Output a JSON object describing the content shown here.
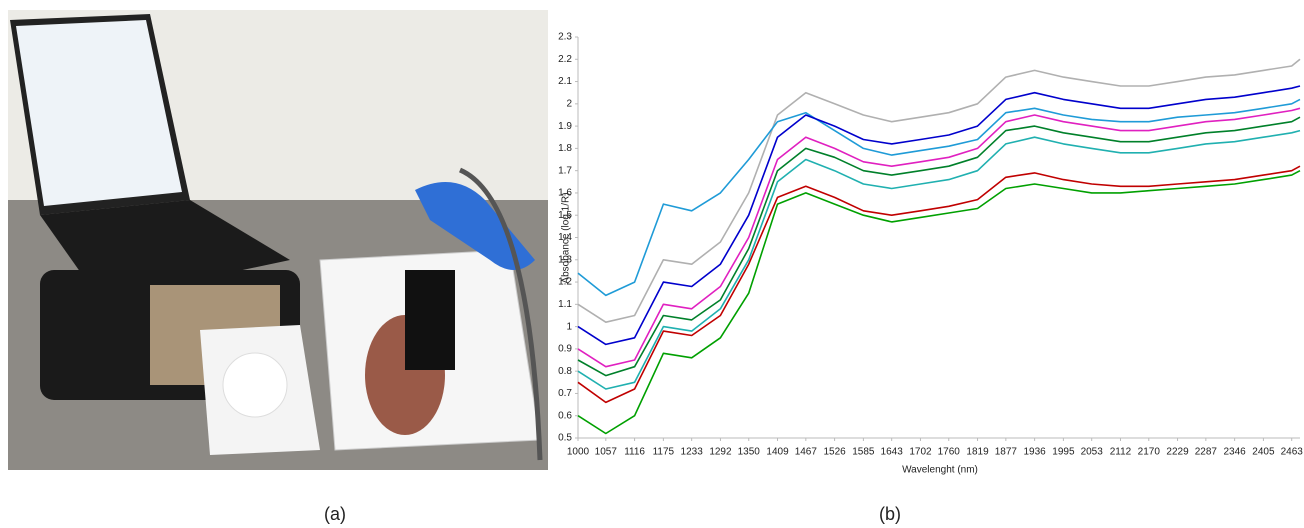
{
  "captions": [
    "(a)",
    "(b)"
  ],
  "chart_data": {
    "type": "line",
    "ylabel": "Absobance (log 1/R)",
    "xlabel": "Wavelenght (nm)",
    "xlim": [
      1000,
      2480
    ],
    "ylim": [
      0.5,
      2.3
    ],
    "xticks": [
      1000,
      1057,
      1116,
      1175,
      1233,
      1292,
      1350,
      1409,
      1467,
      1526,
      1585,
      1643,
      1702,
      1760,
      1819,
      1877,
      1936,
      1995,
      2053,
      2112,
      2170,
      2229,
      2287,
      2346,
      2405,
      2463
    ],
    "yticks": [
      0.5,
      0.6,
      0.7,
      0.8,
      0.9,
      1,
      1.1,
      1.2,
      1.3,
      1.4,
      1.5,
      1.6,
      1.7,
      1.8,
      1.9,
      2,
      2.1,
      2.2,
      2.3
    ],
    "x": [
      1000,
      1057,
      1116,
      1175,
      1233,
      1292,
      1350,
      1409,
      1467,
      1526,
      1585,
      1643,
      1702,
      1760,
      1819,
      1877,
      1936,
      1995,
      2053,
      2112,
      2170,
      2229,
      2287,
      2346,
      2405,
      2463,
      2480
    ],
    "series": [
      {
        "color": "#b0b0b0",
        "values": [
          1.1,
          1.02,
          1.05,
          1.3,
          1.28,
          1.38,
          1.6,
          1.95,
          2.05,
          2.0,
          1.95,
          1.92,
          1.94,
          1.96,
          2.0,
          2.12,
          2.15,
          2.12,
          2.1,
          2.08,
          2.08,
          2.1,
          2.12,
          2.13,
          2.15,
          2.17,
          2.2
        ]
      },
      {
        "color": "#1f9bd7",
        "values": [
          1.24,
          1.14,
          1.2,
          1.55,
          1.52,
          1.6,
          1.75,
          1.92,
          1.96,
          1.88,
          1.8,
          1.77,
          1.79,
          1.81,
          1.84,
          1.96,
          1.98,
          1.95,
          1.93,
          1.92,
          1.92,
          1.94,
          1.95,
          1.96,
          1.98,
          2.0,
          2.02
        ]
      },
      {
        "color": "#0000cc",
        "values": [
          1.0,
          0.92,
          0.95,
          1.2,
          1.18,
          1.28,
          1.5,
          1.85,
          1.95,
          1.9,
          1.84,
          1.82,
          1.84,
          1.86,
          1.9,
          2.02,
          2.05,
          2.02,
          2.0,
          1.98,
          1.98,
          2.0,
          2.02,
          2.03,
          2.05,
          2.07,
          2.08
        ]
      },
      {
        "color": "#e020c0",
        "values": [
          0.9,
          0.82,
          0.85,
          1.1,
          1.08,
          1.18,
          1.4,
          1.75,
          1.85,
          1.8,
          1.74,
          1.72,
          1.74,
          1.76,
          1.8,
          1.92,
          1.95,
          1.92,
          1.9,
          1.88,
          1.88,
          1.9,
          1.92,
          1.93,
          1.95,
          1.97,
          1.98
        ]
      },
      {
        "color": "#00802a",
        "values": [
          0.85,
          0.78,
          0.82,
          1.05,
          1.03,
          1.12,
          1.35,
          1.7,
          1.8,
          1.76,
          1.7,
          1.68,
          1.7,
          1.72,
          1.76,
          1.88,
          1.9,
          1.87,
          1.85,
          1.83,
          1.83,
          1.85,
          1.87,
          1.88,
          1.9,
          1.92,
          1.94
        ]
      },
      {
        "color": "#20b0b0",
        "values": [
          0.8,
          0.72,
          0.75,
          1.0,
          0.98,
          1.08,
          1.3,
          1.65,
          1.75,
          1.7,
          1.64,
          1.62,
          1.64,
          1.66,
          1.7,
          1.82,
          1.85,
          1.82,
          1.8,
          1.78,
          1.78,
          1.8,
          1.82,
          1.83,
          1.85,
          1.87,
          1.88
        ]
      },
      {
        "color": "#c00000",
        "values": [
          0.75,
          0.66,
          0.72,
          0.98,
          0.96,
          1.05,
          1.28,
          1.58,
          1.63,
          1.58,
          1.52,
          1.5,
          1.52,
          1.54,
          1.57,
          1.67,
          1.69,
          1.66,
          1.64,
          1.63,
          1.63,
          1.64,
          1.65,
          1.66,
          1.68,
          1.7,
          1.72
        ]
      },
      {
        "color": "#00a000",
        "values": [
          0.6,
          0.52,
          0.6,
          0.88,
          0.86,
          0.95,
          1.15,
          1.55,
          1.6,
          1.55,
          1.5,
          1.47,
          1.49,
          1.51,
          1.53,
          1.62,
          1.64,
          1.62,
          1.6,
          1.6,
          1.61,
          1.62,
          1.63,
          1.64,
          1.66,
          1.68,
          1.7
        ]
      }
    ]
  }
}
